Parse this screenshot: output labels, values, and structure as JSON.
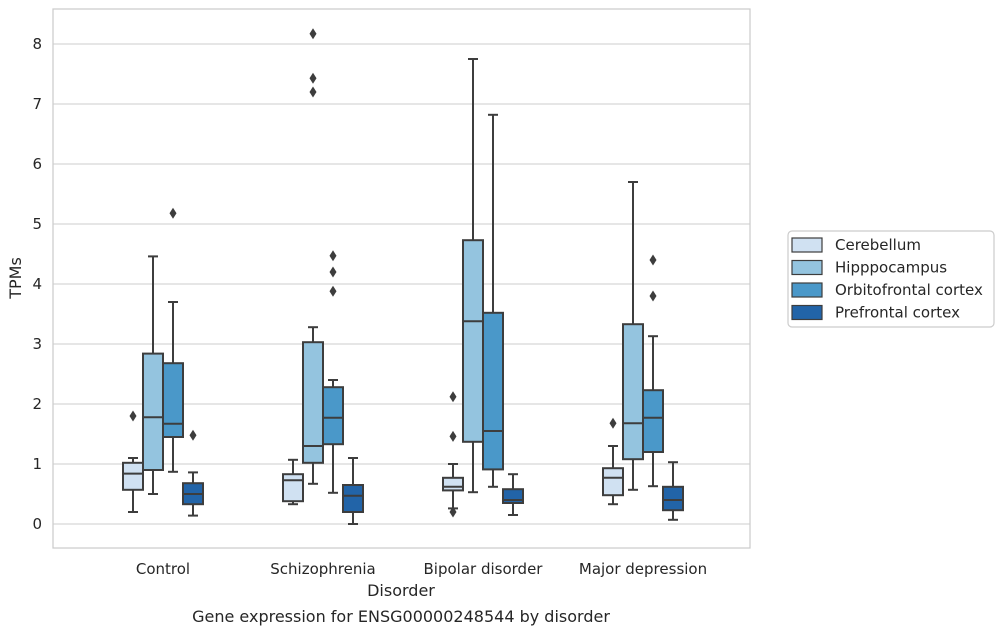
{
  "caption": "Gene expression for ENSG00000248544 by disorder",
  "chart_data": {
    "type": "box",
    "xlabel": "Disorder",
    "ylabel": "TPMs",
    "ylim": [
      -0.4,
      8.6
    ],
    "yticks": [
      "0",
      "1",
      "2",
      "3",
      "4",
      "5",
      "6",
      "7",
      "8"
    ],
    "grid": "horizontal",
    "legend_position": "right",
    "categories": [
      "Control",
      "Schizophrenia",
      "Bipolar disorder",
      "Major depression"
    ],
    "series": [
      {
        "name": "Cerebellum",
        "color": "#d0e1f2",
        "boxes": [
          {
            "whisker_low": 0.2,
            "q1": 0.57,
            "median": 0.84,
            "q3": 1.02,
            "whisker_high": 1.1,
            "outliers": [
              1.8
            ]
          },
          {
            "whisker_low": 0.33,
            "q1": 0.38,
            "median": 0.73,
            "q3": 0.83,
            "whisker_high": 1.07,
            "outliers": []
          },
          {
            "whisker_low": 0.26,
            "q1": 0.56,
            "median": 0.62,
            "q3": 0.77,
            "whisker_high": 1.0,
            "outliers": [
              2.12,
              1.46,
              0.2
            ]
          },
          {
            "whisker_low": 0.33,
            "q1": 0.48,
            "median": 0.77,
            "q3": 0.93,
            "whisker_high": 1.3,
            "outliers": [
              1.68
            ]
          }
        ]
      },
      {
        "name": "Hipppocampus",
        "color": "#94c4df",
        "boxes": [
          {
            "whisker_low": 0.5,
            "q1": 0.9,
            "median": 1.78,
            "q3": 2.84,
            "whisker_high": 4.46,
            "outliers": []
          },
          {
            "whisker_low": 0.67,
            "q1": 1.02,
            "median": 1.3,
            "q3": 3.03,
            "whisker_high": 3.28,
            "outliers": [
              8.17,
              7.43,
              7.2
            ]
          },
          {
            "whisker_low": 0.53,
            "q1": 1.37,
            "median": 3.38,
            "q3": 4.73,
            "whisker_high": 7.75,
            "outliers": []
          },
          {
            "whisker_low": 0.57,
            "q1": 1.08,
            "median": 1.68,
            "q3": 3.33,
            "whisker_high": 5.7,
            "outliers": []
          }
        ]
      },
      {
        "name": "Orbitofrontal cortex",
        "color": "#4a98c9",
        "boxes": [
          {
            "whisker_low": 0.87,
            "q1": 1.45,
            "median": 1.67,
            "q3": 2.68,
            "whisker_high": 3.7,
            "outliers": [
              5.18
            ]
          },
          {
            "whisker_low": 0.52,
            "q1": 1.33,
            "median": 1.77,
            "q3": 2.28,
            "whisker_high": 2.4,
            "outliers": [
              4.47,
              4.2,
              3.88
            ]
          },
          {
            "whisker_low": 0.62,
            "q1": 0.91,
            "median": 1.55,
            "q3": 3.52,
            "whisker_high": 6.82,
            "outliers": []
          },
          {
            "whisker_low": 0.63,
            "q1": 1.2,
            "median": 1.77,
            "q3": 2.23,
            "whisker_high": 3.13,
            "outliers": [
              4.4,
              3.8
            ]
          }
        ]
      },
      {
        "name": "Prefrontal cortex",
        "color": "#2264a8",
        "boxes": [
          {
            "whisker_low": 0.14,
            "q1": 0.33,
            "median": 0.5,
            "q3": 0.68,
            "whisker_high": 0.86,
            "outliers": [
              1.48
            ]
          },
          {
            "whisker_low": 0.0,
            "q1": 0.2,
            "median": 0.47,
            "q3": 0.65,
            "whisker_high": 1.1,
            "outliers": []
          },
          {
            "whisker_low": 0.15,
            "q1": 0.35,
            "median": 0.4,
            "q3": 0.58,
            "whisker_high": 0.83,
            "outliers": []
          },
          {
            "whisker_low": 0.07,
            "q1": 0.23,
            "median": 0.4,
            "q3": 0.62,
            "whisker_high": 1.03,
            "outliers": []
          }
        ]
      }
    ]
  }
}
